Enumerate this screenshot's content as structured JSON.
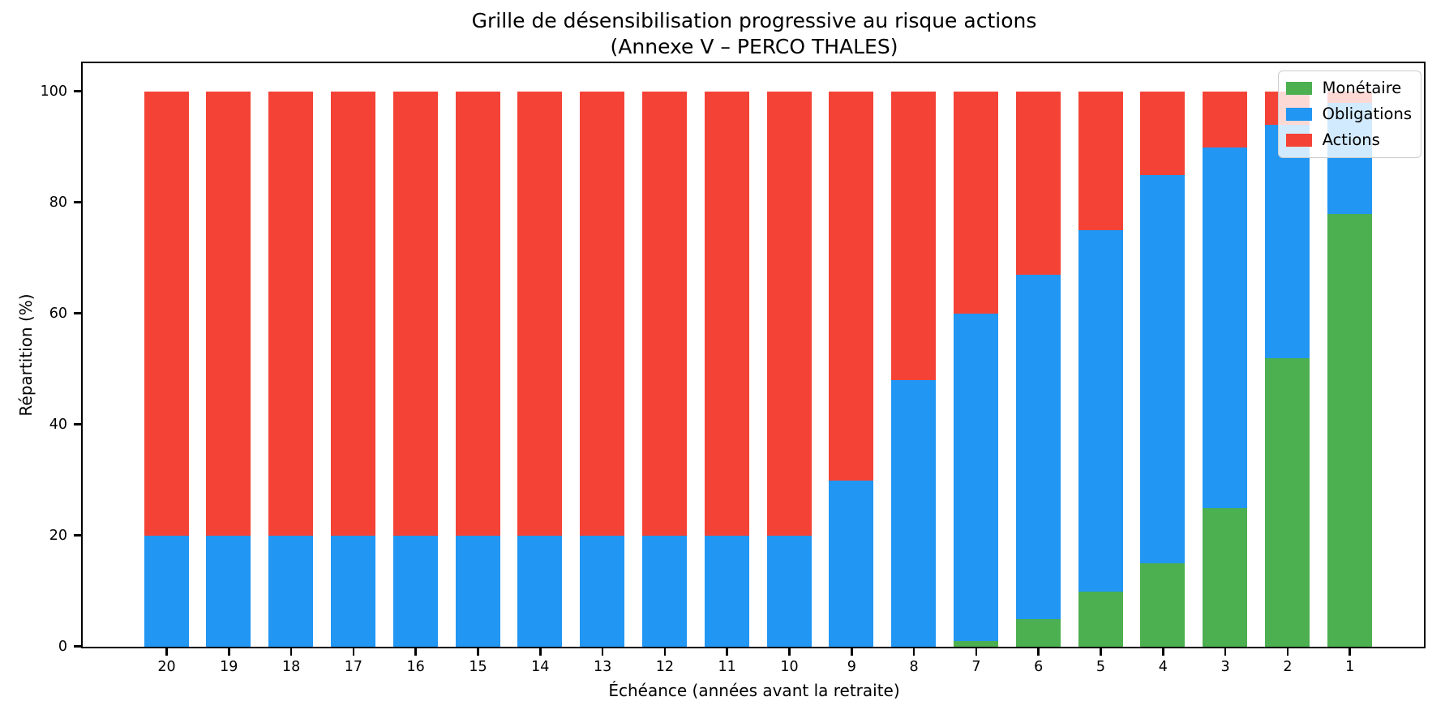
{
  "figure": {
    "title_line1": "Grille de désensibilisation progressive au risque actions",
    "title_line2": "(Annexe V – PERCO THALES)"
  },
  "chart_data": {
    "type": "bar",
    "stacked": true,
    "title": "Grille de désensibilisation progressive au risque actions (Annexe V – PERCO THALES)",
    "xlabel": "Échéance (années avant la retraite)",
    "ylabel": "Répartition (%)",
    "categories": [
      "20",
      "19",
      "18",
      "17",
      "16",
      "15",
      "14",
      "13",
      "12",
      "11",
      "10",
      "9",
      "8",
      "7",
      "6",
      "5",
      "4",
      "3",
      "2",
      "1"
    ],
    "series": [
      {
        "name": "Monétaire",
        "color": "#4caf50",
        "values": [
          0,
          0,
          0,
          0,
          0,
          0,
          0,
          0,
          0,
          0,
          0,
          0,
          0,
          1,
          5,
          10,
          15,
          25,
          52,
          78
        ]
      },
      {
        "name": "Obligations",
        "color": "#2196f3",
        "values": [
          20,
          20,
          20,
          20,
          20,
          20,
          20,
          20,
          20,
          20,
          20,
          30,
          48,
          59,
          62,
          65,
          70,
          65,
          42,
          20
        ]
      },
      {
        "name": "Actions",
        "color": "#f44336",
        "values": [
          80,
          80,
          80,
          80,
          80,
          80,
          80,
          80,
          80,
          80,
          80,
          70,
          52,
          40,
          33,
          25,
          15,
          10,
          6,
          2
        ]
      }
    ],
    "yticks": [
      0,
      20,
      40,
      60,
      80,
      100
    ],
    "ylim": [
      0,
      105
    ],
    "grid": false,
    "legend_position": "upper right"
  }
}
